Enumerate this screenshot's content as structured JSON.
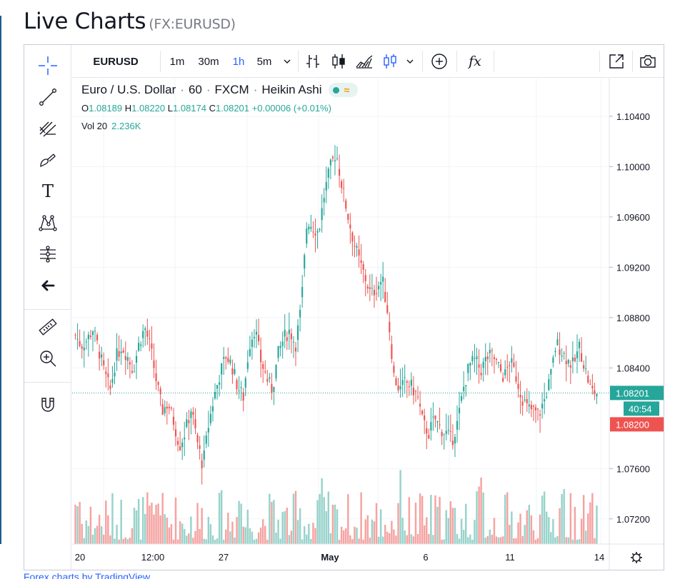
{
  "page": {
    "title": "Live Charts",
    "symbol_code": "(FX:EURUSD)",
    "footer_link": "Forex charts by TradingView"
  },
  "toolbar": {
    "symbol": "EURUSD",
    "intervals": [
      "1m",
      "30m",
      "1h",
      "5m"
    ],
    "active_interval": "1h",
    "icons": [
      "chevron-down-icon",
      "bars-icon",
      "candles-icon",
      "area-icon",
      "heikin-ashi-icon",
      "chevron-down-icon",
      "compare-plus-icon",
      "indicators-fx-icon",
      "fullscreen-icon",
      "snapshot-camera-icon"
    ],
    "fx_label": "fx"
  },
  "left_tools": [
    "crosshair-icon",
    "trendline-icon",
    "fib-icon",
    "brush-icon",
    "text-icon",
    "pattern-icon",
    "forecast-icon",
    "back-arrow-icon",
    "ruler-icon",
    "zoom-in-icon",
    "magnet-icon"
  ],
  "text_tool_label": "T",
  "legend": {
    "title_parts": [
      "Euro / U.S. Dollar",
      "·",
      "60",
      "·",
      "FXCM",
      "·",
      "Heikin Ashi"
    ],
    "ohlc": {
      "O": "1.08189",
      "H": "1.08220",
      "L": "1.08174",
      "C": "1.08201",
      "change": "+0.00006 (+0.01%)"
    },
    "vol_label": "Vol 20",
    "vol_value": "2.236K"
  },
  "price_axis": {
    "labels": [
      "1.10400",
      "1.10000",
      "1.09600",
      "1.09200",
      "1.08800",
      "1.08400",
      "1.07600",
      "1.07200"
    ],
    "last_price": "1.08201",
    "countdown": "40:54",
    "bid_price": "1.08200"
  },
  "time_axis": {
    "labels": [
      "20",
      "12:00",
      "27",
      "May",
      "6",
      "11",
      "14"
    ]
  },
  "chart_data": {
    "type": "candlestick",
    "style": "Heikin Ashi",
    "instrument": "Euro / U.S. Dollar",
    "interval": "60",
    "source": "FXCM",
    "y_range": [
      1.07,
      1.107
    ],
    "y_ticks": [
      1.104,
      1.1,
      1.096,
      1.092,
      1.088,
      1.084,
      1.076,
      1.072
    ],
    "x_ticks": [
      "20",
      "12:00",
      "27",
      "May",
      "6",
      "11",
      "14"
    ],
    "last_close": 1.08201,
    "grid": true,
    "colors": {
      "up": "#26a69a",
      "down": "#ef5350",
      "volume_up": "#97d3cb",
      "volume_down": "#f5a3a1",
      "last_line": "#26a69a"
    },
    "price_path": [
      1.0866,
      1.0858,
      1.0862,
      1.0871,
      1.0855,
      1.0836,
      1.0822,
      1.0848,
      1.0858,
      1.0849,
      1.0838,
      1.086,
      1.0872,
      1.0855,
      1.0829,
      1.0806,
      1.0812,
      1.0797,
      1.0778,
      1.079,
      1.0808,
      1.0782,
      1.0762,
      1.0795,
      1.0818,
      1.0836,
      1.085,
      1.0842,
      1.0825,
      1.0817,
      1.0858,
      1.0872,
      1.0846,
      1.0832,
      1.0822,
      1.0851,
      1.0864,
      1.087,
      1.0858,
      1.0889,
      1.0958,
      1.0952,
      1.0948,
      1.0979,
      1.0999,
      1.1012,
      1.0985,
      1.0962,
      1.0941,
      1.0925,
      1.0912,
      1.0898,
      1.0904,
      1.091,
      1.0882,
      1.0833,
      1.0822,
      1.0829,
      1.0825,
      1.0818,
      1.0796,
      1.0788,
      1.08,
      1.0792,
      1.0788,
      1.0782,
      1.0797,
      1.0824,
      1.0842,
      1.0846,
      1.0838,
      1.0848,
      1.085,
      1.0841,
      1.0832,
      1.0846,
      1.0834,
      1.0818,
      1.0808,
      1.0806,
      1.0803,
      1.0815,
      1.0832,
      1.086,
      1.0853,
      1.0846,
      1.0842,
      1.0857,
      1.0839,
      1.0822,
      1.082
    ]
  }
}
